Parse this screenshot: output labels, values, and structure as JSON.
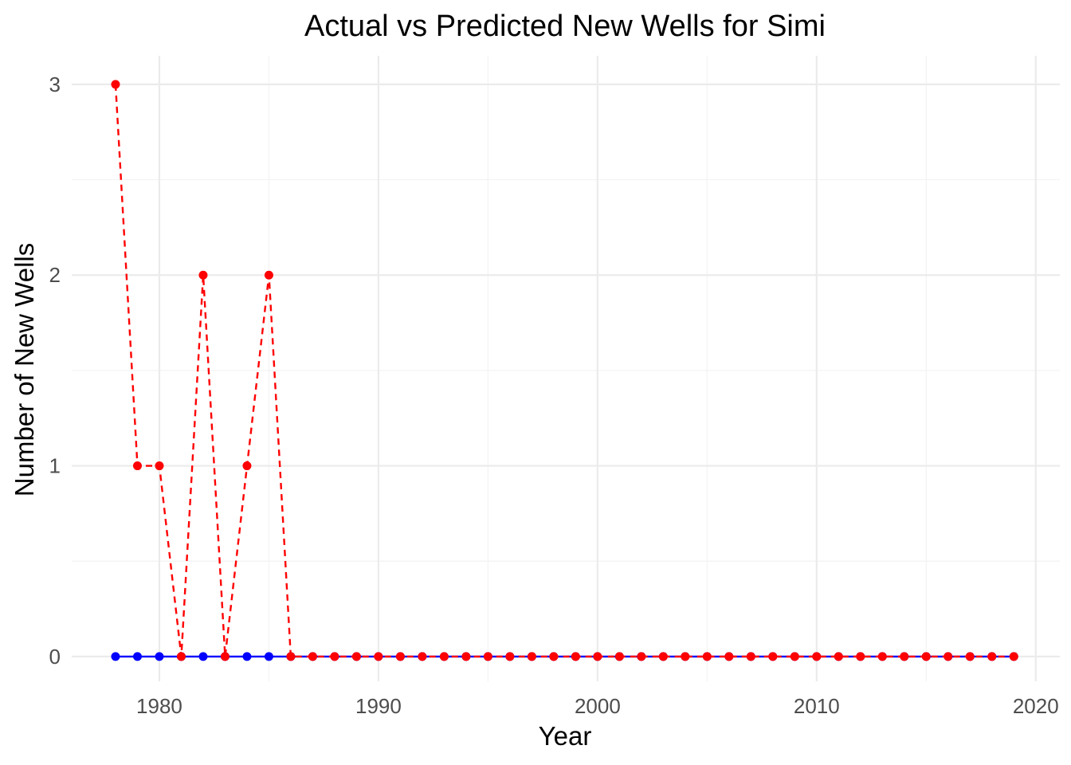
{
  "chart_data": {
    "type": "line",
    "title": "Actual vs Predicted New Wells for Simi",
    "xlabel": "Year",
    "ylabel": "Number of New Wells",
    "xlim": [
      1976.0,
      2021.1
    ],
    "ylim": [
      -0.13,
      3.15
    ],
    "x_ticks": [
      1980,
      1990,
      2000,
      2010,
      2020
    ],
    "y_ticks": [
      0,
      1,
      2,
      3
    ],
    "grid": true,
    "legend": "none",
    "x": [
      1978,
      1979,
      1980,
      1981,
      1982,
      1983,
      1984,
      1985,
      1986,
      1987,
      1988,
      1989,
      1990,
      1991,
      1992,
      1993,
      1994,
      1995,
      1996,
      1997,
      1998,
      1999,
      2000,
      2001,
      2002,
      2003,
      2004,
      2005,
      2006,
      2007,
      2008,
      2009,
      2010,
      2011,
      2012,
      2013,
      2014,
      2015,
      2016,
      2017,
      2018,
      2019
    ],
    "series": [
      {
        "color": "#0000ff",
        "line_style": "solid",
        "values": [
          0,
          0,
          0,
          0,
          0,
          0,
          0,
          0,
          0,
          0,
          0,
          0,
          0,
          0,
          0,
          0,
          0,
          0,
          0,
          0,
          0,
          0,
          0,
          0,
          0,
          0,
          0,
          0,
          0,
          0,
          0,
          0,
          0,
          0,
          0,
          0,
          0,
          0,
          0,
          0,
          0,
          0
        ]
      },
      {
        "color": "#ff0000",
        "line_style": "dashed",
        "values": [
          3,
          1,
          1,
          0,
          2,
          0,
          1,
          2,
          0,
          0,
          0,
          0,
          0,
          0,
          0,
          0,
          0,
          0,
          0,
          0,
          0,
          0,
          0,
          0,
          0,
          0,
          0,
          0,
          0,
          0,
          0,
          0,
          0,
          0,
          0,
          0,
          0,
          0,
          0,
          0,
          0,
          0
        ]
      }
    ]
  }
}
